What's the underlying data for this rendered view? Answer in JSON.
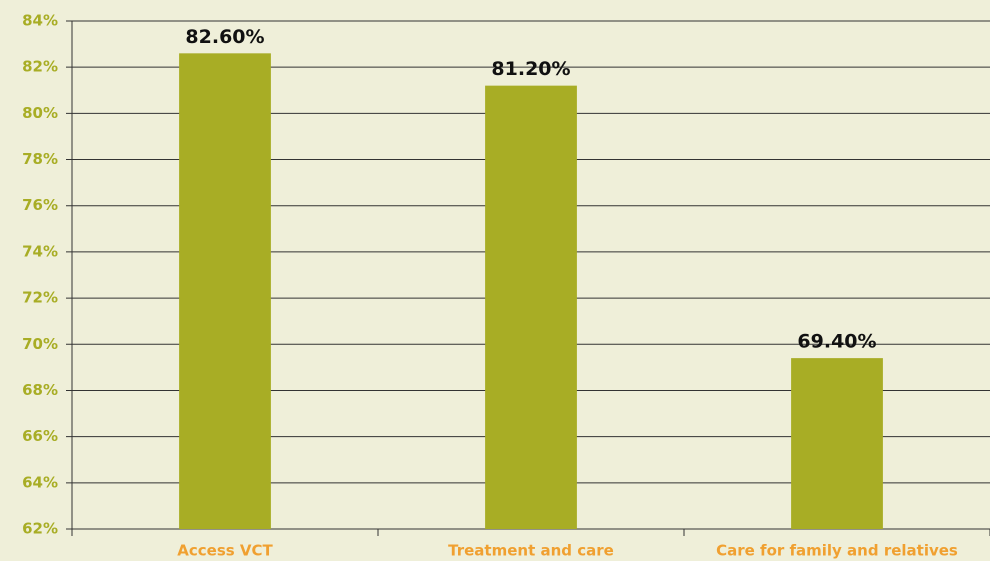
{
  "chart_data": {
    "type": "bar",
    "categories": [
      "Access VCT",
      "Treatment and care",
      "Care for family and relatives"
    ],
    "values": [
      82.6,
      81.2,
      69.4
    ],
    "value_labels": [
      "82.60%",
      "81.20%",
      "69.40%"
    ],
    "color": "#a8ad25",
    "ylim": [
      62,
      84
    ],
    "yticks": [
      {
        "value": 62,
        "label": "62%"
      },
      {
        "value": 64,
        "label": "64%"
      },
      {
        "value": 66,
        "label": "66%"
      },
      {
        "value": 68,
        "label": "68%"
      },
      {
        "value": 70,
        "label": "70%"
      },
      {
        "value": 72,
        "label": "72%"
      },
      {
        "value": 74,
        "label": "74%"
      },
      {
        "value": 76,
        "label": "76%"
      },
      {
        "value": 78,
        "label": "78%"
      },
      {
        "value": 80,
        "label": "80%"
      },
      {
        "value": 82,
        "label": "82%"
      },
      {
        "value": 84,
        "label": "84%"
      }
    ],
    "grid": true
  }
}
